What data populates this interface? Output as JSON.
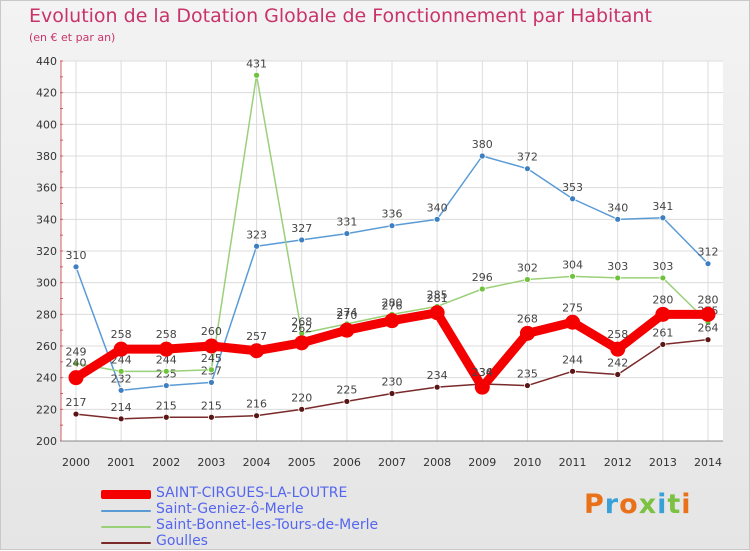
{
  "title": "Evolution de la Dotation Globale de Fonctionnement par Habitant",
  "subtitle": "(en € et par an)",
  "logo": {
    "text": "Proxiti",
    "colors": [
      "#e8711a",
      "#3aa0d8",
      "#e8711a",
      "#7cc242",
      "#3aa0d8",
      "#7cc242",
      "#e8711a"
    ]
  },
  "chart_data": {
    "type": "line",
    "title": "Evolution de la Dotation Globale de Fonctionnement par Habitant",
    "ylabel": "(en € et par an)",
    "xlabel": "",
    "categories": [
      "2000",
      "2001",
      "2002",
      "2003",
      "2004",
      "2005",
      "2006",
      "2007",
      "2008",
      "2009",
      "2010",
      "2011",
      "2012",
      "2013",
      "2014"
    ],
    "ylim": [
      200,
      440
    ],
    "yticks": [
      "200",
      "220",
      "240",
      "260",
      "280",
      "300",
      "320",
      "340",
      "360",
      "380",
      "400",
      "420",
      "440"
    ],
    "grid": true,
    "series": [
      {
        "name": "Saint-Geniez-ô-Merle",
        "color": "#5b9bd5",
        "dot": "#3d7fc1",
        "values": [
          310,
          232,
          235,
          237,
          323,
          327,
          331,
          336,
          340,
          380,
          372,
          353,
          340,
          341,
          312
        ],
        "labels": [
          "310",
          "232",
          "235",
          "237",
          "323",
          "327",
          "331",
          "336",
          "340",
          "380",
          "372",
          "353",
          "340",
          "341",
          "312"
        ]
      },
      {
        "name": "Saint-Bonnet-les-Tours-de-Merle",
        "color": "#9bd07a",
        "dot": "#6fc23c",
        "values": [
          249,
          244,
          244,
          245,
          431,
          268,
          274,
          280,
          285,
          296,
          302,
          304,
          303,
          303,
          275
        ],
        "labels": [
          "249",
          "244",
          "244",
          "245",
          "431",
          "268",
          "274",
          "280",
          "285",
          "296",
          "302",
          "304",
          "303",
          "303",
          "275"
        ]
      },
      {
        "name": "Goulles",
        "color": "#7a2a2a",
        "dot": "#5a1515",
        "values": [
          217,
          214,
          215,
          215,
          216,
          220,
          225,
          230,
          234,
          236,
          235,
          244,
          242,
          261,
          264
        ],
        "labels": [
          "217",
          "214",
          "215",
          "215",
          "216",
          "220",
          "225",
          "230",
          "234",
          "236",
          "235",
          "244",
          "242",
          "261",
          "264"
        ]
      },
      {
        "name": "SAINT-CIRGUES-LA-LOUTRE",
        "color": "#f40000",
        "dot": "#f40000",
        "values": [
          240,
          258,
          258,
          260,
          257,
          262,
          270,
          276,
          281,
          234,
          268,
          275,
          258,
          280,
          280
        ],
        "labels": [
          "240",
          "258",
          "258",
          "260",
          "257",
          "262",
          "270",
          "276",
          "281",
          "234",
          "268",
          "275",
          "258",
          "280",
          "280"
        ]
      }
    ],
    "legend": [
      {
        "name": "SAINT-CIRGUES-LA-LOUTRE",
        "color": "#f40000"
      },
      {
        "name": "Saint-Geniez-ô-Merle",
        "color": "#5b9bd5"
      },
      {
        "name": "Saint-Bonnet-les-Tours-de-Merle",
        "color": "#9bd07a"
      },
      {
        "name": "Goulles",
        "color": "#7a2a2a"
      }
    ],
    "legend_position": "bottom-left"
  }
}
